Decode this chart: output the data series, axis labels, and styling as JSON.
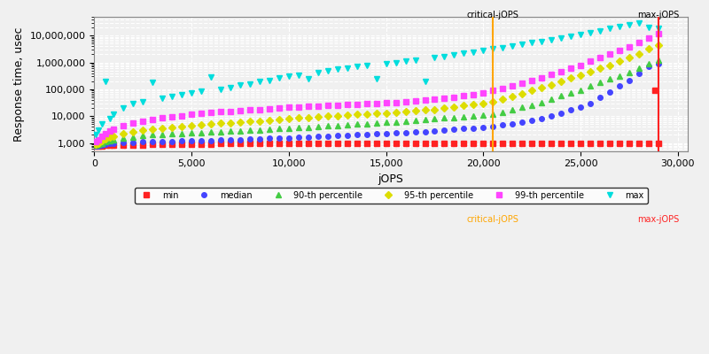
{
  "xlabel": "jOPS",
  "ylabel": "Response time, usec",
  "critical_jops": 20500,
  "max_jops": 29000,
  "xlim": [
    0,
    30500
  ],
  "ylim": [
    500,
    30000000
  ],
  "series": {
    "min": {
      "color": "#ff2222",
      "marker": "s",
      "markersize": 4,
      "label": "min",
      "x": [
        100,
        200,
        400,
        600,
        800,
        1000,
        1500,
        2000,
        2500,
        3000,
        3500,
        4000,
        4500,
        5000,
        5500,
        6000,
        6500,
        7000,
        7500,
        8000,
        8500,
        9000,
        9500,
        10000,
        10500,
        11000,
        11500,
        12000,
        12500,
        13000,
        13500,
        14000,
        14500,
        15000,
        15500,
        16000,
        16500,
        17000,
        17500,
        18000,
        18500,
        19000,
        19500,
        20000,
        20500,
        21000,
        21500,
        22000,
        22500,
        23000,
        23500,
        24000,
        24500,
        25000,
        25500,
        26000,
        26500,
        27000,
        27500,
        28000,
        28500,
        28800,
        29000
      ],
      "y": [
        750,
        780,
        800,
        810,
        820,
        830,
        840,
        850,
        860,
        870,
        880,
        890,
        900,
        910,
        920,
        930,
        940,
        950,
        960,
        970,
        975,
        980,
        985,
        990,
        992,
        994,
        996,
        998,
        999,
        1000,
        1000,
        1000,
        1000,
        1000,
        1000,
        1000,
        1000,
        1000,
        1000,
        1000,
        1000,
        1000,
        1000,
        1000,
        1000,
        1000,
        1000,
        1000,
        1000,
        1000,
        1000,
        1000,
        1000,
        1000,
        1000,
        1000,
        1000,
        1000,
        1000,
        1000,
        1000,
        90000,
        1000
      ]
    },
    "median": {
      "color": "#4444ff",
      "marker": "o",
      "markersize": 4,
      "label": "median",
      "x": [
        100,
        200,
        400,
        600,
        800,
        1000,
        1500,
        2000,
        2500,
        3000,
        3500,
        4000,
        4500,
        5000,
        5500,
        6000,
        6500,
        7000,
        7500,
        8000,
        8500,
        9000,
        9500,
        10000,
        10500,
        11000,
        11500,
        12000,
        12500,
        13000,
        13500,
        14000,
        14500,
        15000,
        15500,
        16000,
        16500,
        17000,
        17500,
        18000,
        18500,
        19000,
        19500,
        20000,
        20500,
        21000,
        21500,
        22000,
        22500,
        23000,
        23500,
        24000,
        24500,
        25000,
        25500,
        26000,
        26500,
        27000,
        27500,
        28000,
        28500,
        29000
      ],
      "y": [
        750,
        800,
        860,
        900,
        950,
        1000,
        1050,
        1080,
        1100,
        1120,
        1140,
        1160,
        1180,
        1200,
        1230,
        1260,
        1290,
        1320,
        1360,
        1400,
        1440,
        1490,
        1530,
        1580,
        1630,
        1680,
        1730,
        1800,
        1870,
        1950,
        2020,
        2100,
        2180,
        2270,
        2350,
        2450,
        2570,
        2700,
        2850,
        3000,
        3200,
        3400,
        3600,
        3850,
        4200,
        4700,
        5300,
        6000,
        7000,
        8000,
        10000,
        13000,
        17000,
        22000,
        30000,
        50000,
        80000,
        130000,
        220000,
        380000,
        700000,
        900000
      ]
    },
    "p90": {
      "color": "#44cc44",
      "marker": "^",
      "markersize": 5,
      "label": "90-th percentile",
      "x": [
        100,
        200,
        400,
        600,
        800,
        1000,
        1500,
        2000,
        2500,
        3000,
        3500,
        4000,
        4500,
        5000,
        5500,
        6000,
        6500,
        7000,
        7500,
        8000,
        8500,
        9000,
        9500,
        10000,
        10500,
        11000,
        11500,
        12000,
        12500,
        13000,
        13500,
        14000,
        14500,
        15000,
        15500,
        16000,
        16500,
        17000,
        17500,
        18000,
        18500,
        19000,
        19500,
        20000,
        20500,
        21000,
        21500,
        22000,
        22500,
        23000,
        23500,
        24000,
        24500,
        25000,
        25500,
        26000,
        26500,
        27000,
        27500,
        28000,
        28500,
        29000
      ],
      "y": [
        850,
        900,
        1000,
        1100,
        1200,
        1300,
        1500,
        1700,
        1900,
        2000,
        2100,
        2200,
        2300,
        2400,
        2500,
        2600,
        2700,
        2800,
        2900,
        3000,
        3100,
        3200,
        3400,
        3500,
        3700,
        3900,
        4100,
        4300,
        4500,
        4800,
        5000,
        5300,
        5600,
        5900,
        6200,
        6600,
        7000,
        7500,
        8000,
        8500,
        9000,
        9800,
        10500,
        11000,
        12000,
        14000,
        17000,
        21000,
        26000,
        33000,
        43000,
        58000,
        75000,
        95000,
        130000,
        180000,
        240000,
        320000,
        430000,
        600000,
        900000,
        1200000
      ]
    },
    "p95": {
      "color": "#dddd00",
      "marker": "D",
      "markersize": 4,
      "label": "95-th percentile",
      "x": [
        100,
        200,
        400,
        600,
        800,
        1000,
        1500,
        2000,
        2500,
        3000,
        3500,
        4000,
        4500,
        5000,
        5500,
        6000,
        6500,
        7000,
        7500,
        8000,
        8500,
        9000,
        9500,
        10000,
        10500,
        11000,
        11500,
        12000,
        12500,
        13000,
        13500,
        14000,
        14500,
        15000,
        15500,
        16000,
        16500,
        17000,
        17500,
        18000,
        18500,
        19000,
        19500,
        20000,
        20500,
        21000,
        21500,
        22000,
        22500,
        23000,
        23500,
        24000,
        24500,
        25000,
        25500,
        26000,
        26500,
        27000,
        27500,
        28000,
        28500,
        29000
      ],
      "y": [
        900,
        1000,
        1200,
        1400,
        1600,
        1800,
        2200,
        2600,
        3000,
        3300,
        3600,
        3900,
        4200,
        4500,
        4800,
        5100,
        5400,
        5700,
        6000,
        6300,
        6700,
        7000,
        7500,
        8000,
        8500,
        9000,
        9500,
        10000,
        10500,
        11000,
        11500,
        12000,
        12500,
        13000,
        14000,
        15000,
        16000,
        17000,
        18000,
        20000,
        22000,
        25000,
        28000,
        30000,
        35000,
        43000,
        55000,
        70000,
        90000,
        115000,
        150000,
        200000,
        260000,
        340000,
        450000,
        600000,
        800000,
        1100000,
        1500000,
        2100000,
        3200000,
        4500000
      ]
    },
    "p99": {
      "color": "#ff44ff",
      "marker": "s",
      "markersize": 4,
      "label": "99-th percentile",
      "x": [
        100,
        200,
        400,
        600,
        800,
        1000,
        1500,
        2000,
        2500,
        3000,
        3500,
        4000,
        4500,
        5000,
        5500,
        6000,
        6500,
        7000,
        7500,
        8000,
        8500,
        9000,
        9500,
        10000,
        10500,
        11000,
        11500,
        12000,
        12500,
        13000,
        13500,
        14000,
        14500,
        15000,
        15500,
        16000,
        16500,
        17000,
        17500,
        18000,
        18500,
        19000,
        19500,
        20000,
        20500,
        21000,
        21500,
        22000,
        22500,
        23000,
        23500,
        24000,
        24500,
        25000,
        25500,
        26000,
        26500,
        27000,
        27500,
        28000,
        28500,
        29000
      ],
      "y": [
        1100,
        1300,
        1800,
        2300,
        2800,
        3300,
        4500,
        5500,
        6500,
        7500,
        8500,
        9500,
        10500,
        11500,
        12500,
        13500,
        14500,
        15000,
        16000,
        17000,
        18000,
        19000,
        20000,
        21000,
        22000,
        23000,
        24000,
        25000,
        26000,
        27000,
        28000,
        29000,
        30000,
        31000,
        33000,
        35000,
        37000,
        40000,
        43000,
        47000,
        52000,
        58000,
        65000,
        75000,
        90000,
        110000,
        135000,
        170000,
        215000,
        270000,
        350000,
        460000,
        600000,
        800000,
        1100000,
        1500000,
        2000000,
        2700000,
        3800000,
        5500000,
        8000000,
        12000000
      ]
    },
    "max": {
      "color": "#00dddd",
      "marker": "v",
      "markersize": 5,
      "label": "max",
      "x": [
        100,
        200,
        400,
        600,
        800,
        1000,
        1500,
        2000,
        2500,
        3000,
        3500,
        4000,
        4500,
        5000,
        5500,
        6000,
        6500,
        7000,
        7500,
        8000,
        8500,
        9000,
        9500,
        10000,
        10500,
        11000,
        11500,
        12000,
        12500,
        13000,
        13500,
        14000,
        14500,
        15000,
        15500,
        16000,
        16500,
        17000,
        17500,
        18000,
        18500,
        19000,
        19500,
        20000,
        20500,
        21000,
        21500,
        22000,
        22500,
        23000,
        23500,
        24000,
        24500,
        25000,
        25500,
        26000,
        26500,
        27000,
        27500,
        28000,
        28500,
        29000
      ],
      "y": [
        2000,
        3000,
        5000,
        200000,
        8000,
        12000,
        20000,
        30000,
        35000,
        180000,
        45000,
        55000,
        65000,
        75000,
        85000,
        280000,
        100000,
        120000,
        140000,
        160000,
        190000,
        220000,
        260000,
        300000,
        340000,
        240000,
        430000,
        490000,
        550000,
        620000,
        700000,
        800000,
        250000,
        900000,
        1000000,
        1100000,
        1250000,
        200000,
        1500000,
        1700000,
        1900000,
        2200000,
        2500000,
        2800000,
        3200000,
        3600000,
        4100000,
        4700000,
        5400000,
        6200000,
        7100000,
        8200000,
        9500000,
        11000000,
        13000000,
        15000000,
        18000000,
        21000000,
        25000000,
        30000000,
        20000000,
        18000000
      ]
    }
  },
  "vlines": [
    {
      "x": 20500,
      "color": "#ffa500",
      "label": "critical-jOPS"
    },
    {
      "x": 29000,
      "color": "#ff2222",
      "label": "max-jOPS"
    }
  ],
  "background_color": "#f0f0f0",
  "grid_color": "#ffffff",
  "legend_loc": "lower center",
  "title_fontsize": 10,
  "axis_fontsize": 9,
  "tick_fontsize": 8
}
